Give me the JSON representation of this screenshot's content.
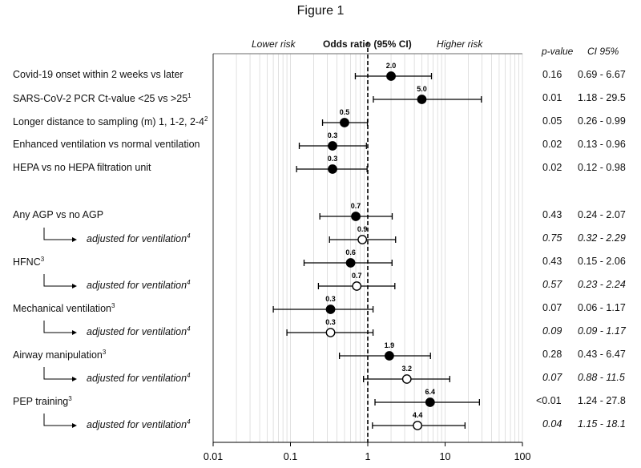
{
  "title": "Figure 1",
  "header": {
    "lower_risk": "Lower risk",
    "odds_ratio": "Odds ratio (95% CI)",
    "higher_risk": "Higher risk",
    "p_value": "p-value",
    "ci": "CI 95%"
  },
  "colors": {
    "filled": "#000000",
    "open": "#ffffff",
    "ref_line": "#000000",
    "grid": "#d9d9d9"
  },
  "chart_data": {
    "type": "scatter",
    "x_scale": "log",
    "xlim": [
      0.01,
      100
    ],
    "x_ticks": [
      "0.01",
      "0.1",
      "1",
      "10",
      "100"
    ],
    "reference_line": 1,
    "grid": true,
    "rows": [
      {
        "label": "Covid-19 onset within 2 weeks vs later",
        "sup": "",
        "adjusted": false,
        "or": 2.0,
        "or_label": "2.0",
        "lo": 0.69,
        "hi": 6.67,
        "p": "0.16",
        "ci": "0.69 - 6.67"
      },
      {
        "label": "SARS-CoV-2 PCR Ct-value <25 vs >25",
        "sup": "1",
        "adjusted": false,
        "or": 5.0,
        "or_label": "5.0",
        "lo": 1.18,
        "hi": 29.5,
        "p": "0.01",
        "ci": "1.18 - 29.5"
      },
      {
        "label": "Longer distance to sampling (m) 1, 1-2, 2-4",
        "sup": "2",
        "adjusted": false,
        "or": 0.5,
        "or_label": "0.5",
        "lo": 0.26,
        "hi": 0.99,
        "p": "0.05",
        "ci": "0.26 - 0.99"
      },
      {
        "label": "Enhanced ventilation vs normal ventilation",
        "sup": "",
        "adjusted": false,
        "or": 0.35,
        "or_label": "0.3",
        "lo": 0.13,
        "hi": 0.96,
        "p": "0.02",
        "ci": "0.13 - 0.96"
      },
      {
        "label": "HEPA vs no HEPA filtration unit",
        "sup": "",
        "adjusted": false,
        "or": 0.35,
        "or_label": "0.3",
        "lo": 0.12,
        "hi": 0.98,
        "p": "0.02",
        "ci": "0.12 - 0.98"
      },
      {
        "label": "Any AGP vs no AGP",
        "sup": "",
        "adjusted": false,
        "or": 0.7,
        "or_label": "0.7",
        "lo": 0.24,
        "hi": 2.07,
        "p": "0.43",
        "ci": "0.24 - 2.07"
      },
      {
        "label": "adjusted for ventilation",
        "sup": "4",
        "adjusted": true,
        "or": 0.85,
        "or_label": "0.9",
        "lo": 0.32,
        "hi": 2.29,
        "p": "0.75",
        "ci": "0.32 - 2.29"
      },
      {
        "label": "HFNC",
        "sup": "3",
        "adjusted": false,
        "or": 0.6,
        "or_label": "0.6",
        "lo": 0.15,
        "hi": 2.06,
        "p": "0.43",
        "ci": "0.15 - 2.06"
      },
      {
        "label": "adjusted for ventilation",
        "sup": "4",
        "adjusted": true,
        "or": 0.72,
        "or_label": "0.7",
        "lo": 0.23,
        "hi": 2.24,
        "p": "0.57",
        "ci": "0.23 - 2.24"
      },
      {
        "label": "Mechanical ventilation",
        "sup": "3",
        "adjusted": false,
        "or": 0.33,
        "or_label": "0.3",
        "lo": 0.06,
        "hi": 1.17,
        "p": "0.07",
        "ci": "0.06 - 1.17"
      },
      {
        "label": "adjusted for ventilation",
        "sup": "4",
        "adjusted": true,
        "or": 0.33,
        "or_label": "0.3",
        "lo": 0.09,
        "hi": 1.17,
        "p": "0.09",
        "ci": "0.09 - 1.17"
      },
      {
        "label": "Airway manipulation",
        "sup": "3",
        "adjusted": false,
        "or": 1.9,
        "or_label": "1.9",
        "lo": 0.43,
        "hi": 6.47,
        "p": "0.28",
        "ci": "0.43 - 6.47"
      },
      {
        "label": "adjusted for ventilation",
        "sup": "4",
        "adjusted": true,
        "or": 3.2,
        "or_label": "3.2",
        "lo": 0.88,
        "hi": 11.5,
        "p": "0.07",
        "ci": "0.88 - 11.5"
      },
      {
        "label": "PEP training",
        "sup": "3",
        "adjusted": false,
        "or": 6.4,
        "or_label": "6.4",
        "lo": 1.24,
        "hi": 27.8,
        "p": "<0.01",
        "ci": "1.24 - 27.8"
      },
      {
        "label": "adjusted for ventilation",
        "sup": "4",
        "adjusted": true,
        "or": 4.4,
        "or_label": "4.4",
        "lo": 1.15,
        "hi": 18.1,
        "p": "0.04",
        "ci": "1.15 - 18.1"
      }
    ]
  }
}
